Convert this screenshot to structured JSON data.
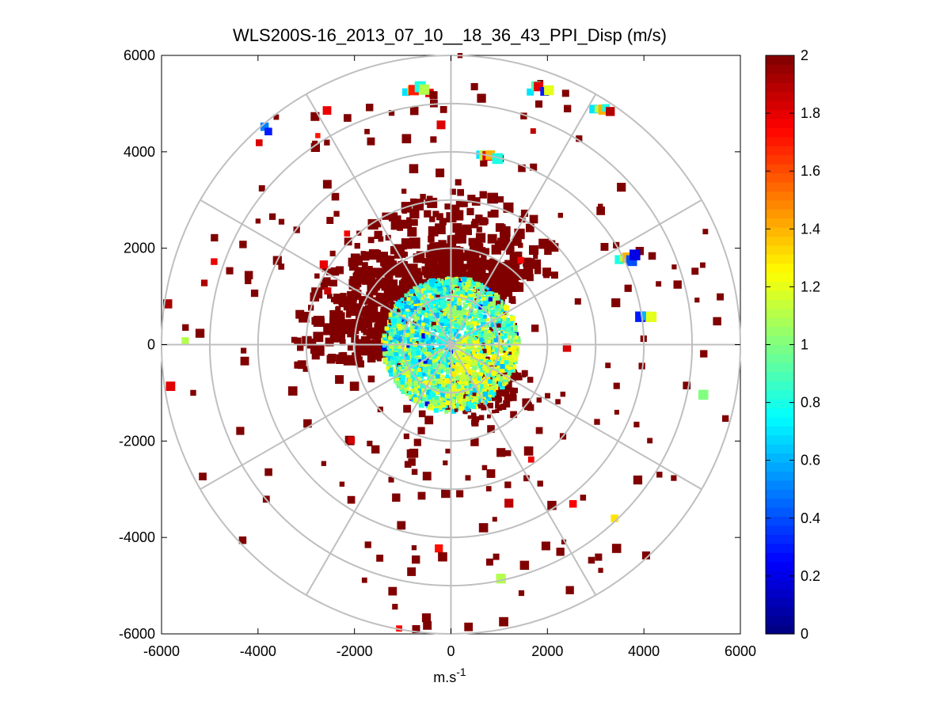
{
  "chart_data": {
    "type": "heatmap",
    "subtype": "polar-ppi-scan",
    "title": "WLS200S-16_2013_07_10__18_36_43_PPI_Disp (m/s)",
    "xlabel_base": "m.s",
    "xlabel_exp": "-1",
    "ylabel": "",
    "xlim": [
      -6000,
      6000
    ],
    "ylim": [
      -6000,
      6000
    ],
    "x_ticks": [
      "-6000",
      "-4000",
      "-2000",
      "0",
      "2000",
      "4000",
      "6000"
    ],
    "x_tick_values": [
      -6000,
      -4000,
      -2000,
      0,
      2000,
      4000,
      6000
    ],
    "y_ticks": [
      "6000",
      "4000",
      "2000",
      "0",
      "-2000",
      "-4000",
      "-6000"
    ],
    "y_tick_values": [
      6000,
      4000,
      2000,
      0,
      -2000,
      -4000,
      -6000
    ],
    "range_rings": [
      1000,
      2000,
      3000,
      4000,
      5000,
      6000
    ],
    "radial_spokes_deg": [
      0,
      30,
      60,
      90,
      120,
      150,
      180,
      210,
      240,
      270,
      300,
      330
    ],
    "grid": true,
    "colormap": "jet",
    "clim": [
      0,
      2
    ],
    "colorbar_ticks": [
      "2",
      "1.8",
      "1.6",
      "1.4",
      "1.2",
      "1",
      "0.8",
      "0.6",
      "0.4",
      "0.2",
      "0"
    ],
    "colorbar_tick_values": [
      2,
      1.8,
      1.6,
      1.4,
      1.2,
      1,
      0.8,
      0.6,
      0.4,
      0.2,
      0
    ],
    "colorbar_location": "right",
    "dense_core": {
      "center": [
        0,
        0
      ],
      "radius": 1400,
      "value_range": [
        0.6,
        1.3
      ],
      "dominant_value": 0.95
    },
    "saturated_band": {
      "azimuth_range_deg": [
        265,
        45
      ],
      "range": [
        1300,
        3200
      ],
      "value": 2.0
    },
    "sparse_value": 2.0,
    "clusters": [
      {
        "x": -700,
        "y": 5300,
        "values": [
          0.7,
          1.3,
          1.7,
          0.8,
          1.1
        ]
      },
      {
        "x": 1900,
        "y": 5300,
        "values": [
          0.7,
          0.9,
          1.8,
          0.3,
          1.2
        ]
      },
      {
        "x": 3200,
        "y": 4900,
        "values": [
          0.7,
          1.1,
          1.4,
          0.8,
          1.9
        ]
      },
      {
        "x": 800,
        "y": 3900,
        "values": [
          0.7,
          1.1,
          1.8,
          1.4,
          0.8
        ]
      },
      {
        "x": -3800,
        "y": 4500,
        "values": [
          0.5,
          0.3
        ]
      },
      {
        "x": 3700,
        "y": 1800,
        "values": [
          0.8,
          1.1,
          1.4,
          0.4,
          0.2
        ]
      },
      {
        "x": 4100,
        "y": 600,
        "values": [
          0.3,
          0.6,
          1.2
        ]
      },
      {
        "x": -5500,
        "y": 0,
        "values": [
          1.1
        ]
      },
      {
        "x": 5300,
        "y": -1000,
        "values": [
          1.0
        ]
      },
      {
        "x": 3400,
        "y": -3600,
        "values": [
          1.3
        ]
      },
      {
        "x": 1100,
        "y": -4900,
        "values": [
          1.1
        ]
      }
    ]
  }
}
